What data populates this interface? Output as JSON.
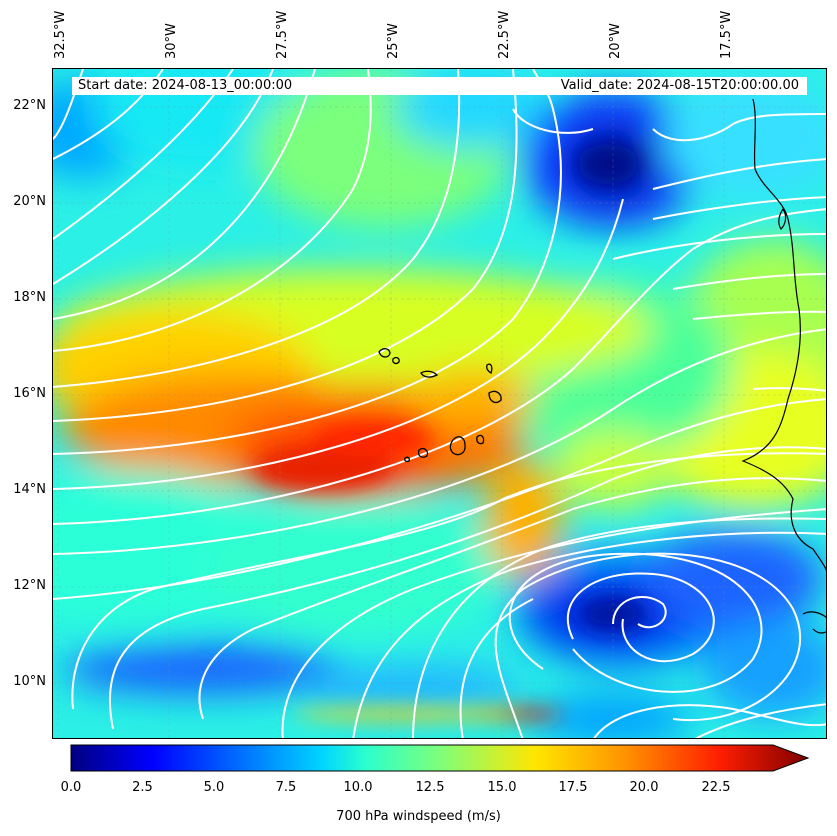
{
  "header": {
    "start_date": "Start date: 2024-08-13_00:00:00",
    "valid_date": "Valid_date: 2024-08-15T20:00:00.00"
  },
  "map": {
    "lon_ticks": [
      "32.5°W",
      "30°W",
      "27.5°W",
      "25°W",
      "22.5°W",
      "20°W",
      "17.5°W"
    ],
    "lat_ticks": [
      "22°N",
      "20°N",
      "18°N",
      "16°N",
      "14°N",
      "12°N",
      "10°N"
    ],
    "extent": {
      "lon_min": -33,
      "lon_max": -15.5,
      "lat_min": 8.8,
      "lat_max": 22.8
    },
    "gridlines": true,
    "streamline_color": "#ffffff",
    "coastline_color": "#000000"
  },
  "colorbar": {
    "label": "700 hPa windspeed (m/s)",
    "ticks": [
      "0.0",
      "2.5",
      "5.0",
      "7.5",
      "10.0",
      "12.5",
      "15.0",
      "17.5",
      "20.0",
      "22.5"
    ],
    "vmin": 0,
    "vmax": 25,
    "extend": "max",
    "colormap": "jet"
  }
}
